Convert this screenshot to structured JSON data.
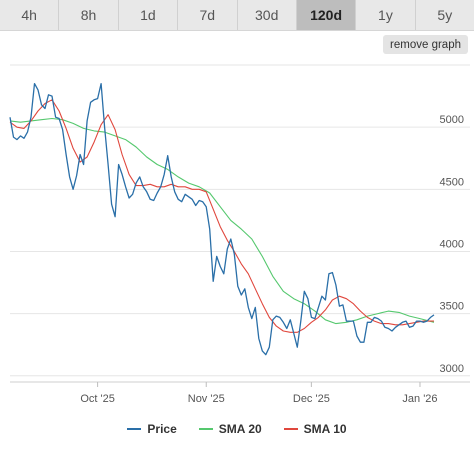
{
  "tabs": [
    {
      "label": "4h",
      "active": false
    },
    {
      "label": "8h",
      "active": false
    },
    {
      "label": "1d",
      "active": false
    },
    {
      "label": "7d",
      "active": false
    },
    {
      "label": "30d",
      "active": false
    },
    {
      "label": "120d",
      "active": true
    },
    {
      "label": "1y",
      "active": false
    },
    {
      "label": "5y",
      "active": false
    }
  ],
  "remove_graph_label": "remove graph",
  "colors": {
    "price": "#2a6fa8",
    "sma20": "#55c86e",
    "sma10": "#e0473d",
    "grid": "#e6e6e6"
  },
  "chart_data": {
    "type": "line",
    "x_range": [
      "2025-09-06",
      "2026-01-05"
    ],
    "ylim": [
      2950,
      5500
    ],
    "y_ticks": [
      3000,
      3500,
      4000,
      4500,
      5000
    ],
    "x_ticks": [
      {
        "date": "2025-10-01",
        "label": "Oct '25"
      },
      {
        "date": "2025-11-01",
        "label": "Nov '25"
      },
      {
        "date": "2025-12-01",
        "label": "Dec '25"
      },
      {
        "date": "2026-01-01",
        "label": "Jan '26"
      }
    ],
    "grid": true,
    "legend_position": "bottom",
    "series": [
      {
        "name": "Price",
        "color_key": "price",
        "points": [
          [
            "2025-09-06",
            5080
          ],
          [
            "2025-09-07",
            4920
          ],
          [
            "2025-09-08",
            4900
          ],
          [
            "2025-09-09",
            4930
          ],
          [
            "2025-09-10",
            4910
          ],
          [
            "2025-09-11",
            4960
          ],
          [
            "2025-09-12",
            5080
          ],
          [
            "2025-09-13",
            5350
          ],
          [
            "2025-09-14",
            5300
          ],
          [
            "2025-09-15",
            5180
          ],
          [
            "2025-09-16",
            5150
          ],
          [
            "2025-09-17",
            5260
          ],
          [
            "2025-09-18",
            5250
          ],
          [
            "2025-09-19",
            5080
          ],
          [
            "2025-09-20",
            5070
          ],
          [
            "2025-09-21",
            4980
          ],
          [
            "2025-09-22",
            4780
          ],
          [
            "2025-09-23",
            4600
          ],
          [
            "2025-09-24",
            4500
          ],
          [
            "2025-09-25",
            4610
          ],
          [
            "2025-09-26",
            4780
          ],
          [
            "2025-09-27",
            4700
          ],
          [
            "2025-09-28",
            5050
          ],
          [
            "2025-09-29",
            5200
          ],
          [
            "2025-09-30",
            5220
          ],
          [
            "2025-10-01",
            5230
          ],
          [
            "2025-10-02",
            5350
          ],
          [
            "2025-10-03",
            5000
          ],
          [
            "2025-10-04",
            4700
          ],
          [
            "2025-10-05",
            4380
          ],
          [
            "2025-10-06",
            4280
          ],
          [
            "2025-10-07",
            4700
          ],
          [
            "2025-10-08",
            4620
          ],
          [
            "2025-10-09",
            4520
          ],
          [
            "2025-10-10",
            4430
          ],
          [
            "2025-10-11",
            4460
          ],
          [
            "2025-10-12",
            4550
          ],
          [
            "2025-10-13",
            4600
          ],
          [
            "2025-10-14",
            4520
          ],
          [
            "2025-10-15",
            4480
          ],
          [
            "2025-10-16",
            4420
          ],
          [
            "2025-10-17",
            4410
          ],
          [
            "2025-10-18",
            4470
          ],
          [
            "2025-10-19",
            4520
          ],
          [
            "2025-10-20",
            4620
          ],
          [
            "2025-10-21",
            4770
          ],
          [
            "2025-10-22",
            4600
          ],
          [
            "2025-10-23",
            4480
          ],
          [
            "2025-10-24",
            4420
          ],
          [
            "2025-10-25",
            4400
          ],
          [
            "2025-10-26",
            4460
          ],
          [
            "2025-10-27",
            4440
          ],
          [
            "2025-10-28",
            4420
          ],
          [
            "2025-10-29",
            4370
          ],
          [
            "2025-10-30",
            4410
          ],
          [
            "2025-10-31",
            4400
          ],
          [
            "2025-11-01",
            4360
          ],
          [
            "2025-11-02",
            4180
          ],
          [
            "2025-11-03",
            3760
          ],
          [
            "2025-11-04",
            3960
          ],
          [
            "2025-11-05",
            3880
          ],
          [
            "2025-11-06",
            3820
          ],
          [
            "2025-11-07",
            4020
          ],
          [
            "2025-11-08",
            4100
          ],
          [
            "2025-11-09",
            3980
          ],
          [
            "2025-11-10",
            3720
          ],
          [
            "2025-11-11",
            3650
          ],
          [
            "2025-11-12",
            3700
          ],
          [
            "2025-11-13",
            3550
          ],
          [
            "2025-11-14",
            3460
          ],
          [
            "2025-11-15",
            3550
          ],
          [
            "2025-11-16",
            3300
          ],
          [
            "2025-11-17",
            3200
          ],
          [
            "2025-11-18",
            3170
          ],
          [
            "2025-11-19",
            3230
          ],
          [
            "2025-11-20",
            3450
          ],
          [
            "2025-11-21",
            3480
          ],
          [
            "2025-11-22",
            3470
          ],
          [
            "2025-11-23",
            3430
          ],
          [
            "2025-11-24",
            3380
          ],
          [
            "2025-11-25",
            3450
          ],
          [
            "2025-11-26",
            3340
          ],
          [
            "2025-11-27",
            3230
          ],
          [
            "2025-11-28",
            3440
          ],
          [
            "2025-11-29",
            3680
          ],
          [
            "2025-11-30",
            3620
          ],
          [
            "2025-12-01",
            3470
          ],
          [
            "2025-12-02",
            3460
          ],
          [
            "2025-12-03",
            3550
          ],
          [
            "2025-12-04",
            3640
          ],
          [
            "2025-12-05",
            3610
          ],
          [
            "2025-12-06",
            3820
          ],
          [
            "2025-12-07",
            3830
          ],
          [
            "2025-12-08",
            3730
          ],
          [
            "2025-12-09",
            3560
          ],
          [
            "2025-12-10",
            3570
          ],
          [
            "2025-12-11",
            3440
          ],
          [
            "2025-12-12",
            3440
          ],
          [
            "2025-12-13",
            3440
          ],
          [
            "2025-12-14",
            3320
          ],
          [
            "2025-12-15",
            3270
          ],
          [
            "2025-12-16",
            3270
          ],
          [
            "2025-12-17",
            3430
          ],
          [
            "2025-12-18",
            3430
          ],
          [
            "2025-12-19",
            3470
          ],
          [
            "2025-12-20",
            3460
          ],
          [
            "2025-12-21",
            3440
          ],
          [
            "2025-12-22",
            3390
          ],
          [
            "2025-12-23",
            3380
          ],
          [
            "2025-12-24",
            3360
          ],
          [
            "2025-12-25",
            3390
          ],
          [
            "2025-12-26",
            3410
          ],
          [
            "2025-12-27",
            3430
          ],
          [
            "2025-12-28",
            3440
          ],
          [
            "2025-12-29",
            3390
          ],
          [
            "2025-12-30",
            3400
          ],
          [
            "2025-12-31",
            3440
          ],
          [
            "2026-01-01",
            3440
          ],
          [
            "2026-01-02",
            3430
          ],
          [
            "2026-01-03",
            3440
          ],
          [
            "2026-01-04",
            3470
          ],
          [
            "2026-01-05",
            3490
          ]
        ]
      },
      {
        "name": "SMA 20",
        "color_key": "sma20",
        "points": [
          [
            "2025-09-06",
            5050
          ],
          [
            "2025-09-09",
            5040
          ],
          [
            "2025-09-12",
            5050
          ],
          [
            "2025-09-15",
            5060
          ],
          [
            "2025-09-18",
            5070
          ],
          [
            "2025-09-21",
            5060
          ],
          [
            "2025-09-24",
            5030
          ],
          [
            "2025-09-27",
            4990
          ],
          [
            "2025-09-30",
            4970
          ],
          [
            "2025-10-03",
            4960
          ],
          [
            "2025-10-06",
            4930
          ],
          [
            "2025-10-09",
            4900
          ],
          [
            "2025-10-12",
            4840
          ],
          [
            "2025-10-15",
            4760
          ],
          [
            "2025-10-18",
            4700
          ],
          [
            "2025-10-21",
            4660
          ],
          [
            "2025-10-24",
            4600
          ],
          [
            "2025-10-27",
            4550
          ],
          [
            "2025-10-30",
            4520
          ],
          [
            "2025-11-02",
            4470
          ],
          [
            "2025-11-05",
            4360
          ],
          [
            "2025-11-08",
            4250
          ],
          [
            "2025-11-11",
            4180
          ],
          [
            "2025-11-14",
            4100
          ],
          [
            "2025-11-17",
            3960
          ],
          [
            "2025-11-20",
            3800
          ],
          [
            "2025-11-23",
            3680
          ],
          [
            "2025-11-26",
            3620
          ],
          [
            "2025-11-29",
            3580
          ],
          [
            "2025-12-02",
            3520
          ],
          [
            "2025-12-05",
            3450
          ],
          [
            "2025-12-08",
            3420
          ],
          [
            "2025-12-11",
            3430
          ],
          [
            "2025-12-14",
            3450
          ],
          [
            "2025-12-17",
            3480
          ],
          [
            "2025-12-20",
            3500
          ],
          [
            "2025-12-23",
            3520
          ],
          [
            "2025-12-26",
            3510
          ],
          [
            "2025-12-29",
            3480
          ],
          [
            "2026-01-01",
            3460
          ],
          [
            "2026-01-05",
            3430
          ]
        ]
      },
      {
        "name": "SMA 10",
        "color_key": "sma10",
        "points": [
          [
            "2025-09-06",
            5040
          ],
          [
            "2025-09-08",
            5000
          ],
          [
            "2025-09-10",
            4990
          ],
          [
            "2025-09-12",
            5050
          ],
          [
            "2025-09-14",
            5130
          ],
          [
            "2025-09-16",
            5190
          ],
          [
            "2025-09-18",
            5220
          ],
          [
            "2025-09-20",
            5130
          ],
          [
            "2025-09-22",
            4990
          ],
          [
            "2025-09-24",
            4830
          ],
          [
            "2025-09-26",
            4720
          ],
          [
            "2025-09-28",
            4760
          ],
          [
            "2025-09-30",
            4880
          ],
          [
            "2025-10-02",
            5020
          ],
          [
            "2025-10-04",
            5100
          ],
          [
            "2025-10-06",
            4980
          ],
          [
            "2025-10-08",
            4780
          ],
          [
            "2025-10-10",
            4620
          ],
          [
            "2025-10-12",
            4530
          ],
          [
            "2025-10-14",
            4530
          ],
          [
            "2025-10-16",
            4540
          ],
          [
            "2025-10-18",
            4520
          ],
          [
            "2025-10-20",
            4520
          ],
          [
            "2025-10-22",
            4540
          ],
          [
            "2025-10-24",
            4520
          ],
          [
            "2025-10-26",
            4520
          ],
          [
            "2025-10-28",
            4500
          ],
          [
            "2025-10-30",
            4500
          ],
          [
            "2025-11-01",
            4480
          ],
          [
            "2025-11-03",
            4340
          ],
          [
            "2025-11-05",
            4200
          ],
          [
            "2025-11-07",
            4090
          ],
          [
            "2025-11-09",
            4000
          ],
          [
            "2025-11-11",
            3900
          ],
          [
            "2025-11-13",
            3820
          ],
          [
            "2025-11-15",
            3700
          ],
          [
            "2025-11-17",
            3580
          ],
          [
            "2025-11-19",
            3470
          ],
          [
            "2025-11-21",
            3400
          ],
          [
            "2025-11-23",
            3360
          ],
          [
            "2025-11-25",
            3350
          ],
          [
            "2025-11-27",
            3350
          ],
          [
            "2025-11-29",
            3380
          ],
          [
            "2025-12-01",
            3430
          ],
          [
            "2025-12-03",
            3470
          ],
          [
            "2025-12-05",
            3530
          ],
          [
            "2025-12-07",
            3610
          ],
          [
            "2025-12-09",
            3640
          ],
          [
            "2025-12-11",
            3620
          ],
          [
            "2025-12-13",
            3580
          ],
          [
            "2025-12-15",
            3520
          ],
          [
            "2025-12-17",
            3470
          ],
          [
            "2025-12-19",
            3440
          ],
          [
            "2025-12-21",
            3420
          ],
          [
            "2025-12-23",
            3420
          ],
          [
            "2025-12-25",
            3410
          ],
          [
            "2025-12-27",
            3410
          ],
          [
            "2025-12-29",
            3420
          ],
          [
            "2025-12-31",
            3430
          ],
          [
            "2026-01-02",
            3440
          ],
          [
            "2026-01-05",
            3440
          ]
        ]
      }
    ]
  }
}
